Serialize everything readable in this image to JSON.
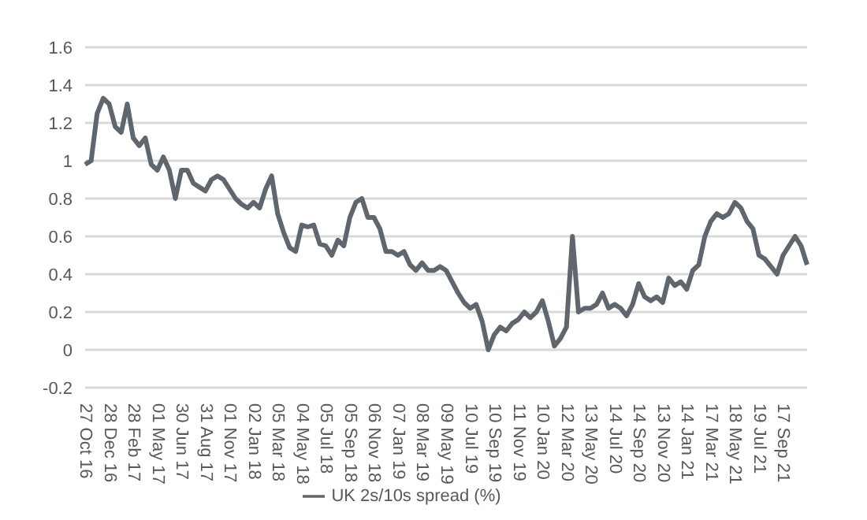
{
  "chart_data": {
    "type": "line",
    "categories": [
      "27 Oct 16",
      null,
      null,
      null,
      "28 Dec 16",
      null,
      null,
      null,
      "28 Feb 17",
      null,
      null,
      null,
      "01 May 17",
      null,
      null,
      null,
      "30 Jun 17",
      null,
      null,
      null,
      "31 Aug 17",
      null,
      null,
      null,
      "01 Nov 17",
      null,
      null,
      null,
      "02 Jan 18",
      null,
      null,
      null,
      "05 Mar 18",
      null,
      null,
      null,
      "04 May 18",
      null,
      null,
      null,
      "05 Jul 18",
      null,
      null,
      null,
      "05 Sep 18",
      null,
      null,
      null,
      "06 Nov 18",
      null,
      null,
      null,
      "07 Jan 19",
      null,
      null,
      null,
      "08 Mar 19",
      null,
      null,
      null,
      "09 May 19",
      null,
      null,
      null,
      "10 Jul 19",
      null,
      null,
      null,
      "10 Sep 19",
      null,
      null,
      null,
      "11 Nov 19",
      null,
      null,
      null,
      "10 Jan 20",
      null,
      null,
      null,
      "12 Mar 20",
      null,
      null,
      null,
      "13 May 20",
      null,
      null,
      null,
      "14 Jul 20",
      null,
      null,
      null,
      "14 Sep 20",
      null,
      null,
      null,
      "13 Nov 20",
      null,
      null,
      null,
      "14 Jan 21",
      null,
      null,
      null,
      "17 Mar 21",
      null,
      null,
      null,
      "18 May 21",
      null,
      null,
      null,
      "19 Jul 21",
      null,
      null,
      null,
      "17 Sep 21",
      null,
      null,
      null,
      null
    ],
    "series": [
      {
        "name": "UK 2s/10s spread (%)",
        "color": "#5f666d",
        "values": [
          0.98,
          1.0,
          1.25,
          1.33,
          1.3,
          1.18,
          1.15,
          1.3,
          1.12,
          1.08,
          1.12,
          0.98,
          0.95,
          1.02,
          0.95,
          0.8,
          0.95,
          0.95,
          0.88,
          0.86,
          0.84,
          0.9,
          0.92,
          0.9,
          0.85,
          0.8,
          0.77,
          0.75,
          0.78,
          0.75,
          0.85,
          0.92,
          0.72,
          0.62,
          0.54,
          0.52,
          0.66,
          0.65,
          0.66,
          0.56,
          0.55,
          0.5,
          0.58,
          0.55,
          0.7,
          0.78,
          0.8,
          0.7,
          0.7,
          0.64,
          0.52,
          0.52,
          0.5,
          0.52,
          0.45,
          0.42,
          0.46,
          0.42,
          0.42,
          0.44,
          0.42,
          0.36,
          0.3,
          0.25,
          0.22,
          0.24,
          0.15,
          0.0,
          0.08,
          0.12,
          0.1,
          0.14,
          0.16,
          0.2,
          0.17,
          0.2,
          0.26,
          0.15,
          0.02,
          0.06,
          0.12,
          0.6,
          0.2,
          0.22,
          0.22,
          0.24,
          0.3,
          0.22,
          0.24,
          0.22,
          0.18,
          0.24,
          0.35,
          0.28,
          0.26,
          0.28,
          0.25,
          0.38,
          0.34,
          0.36,
          0.32,
          0.42,
          0.45,
          0.6,
          0.68,
          0.72,
          0.7,
          0.72,
          0.78,
          0.75,
          0.68,
          0.64,
          0.5,
          0.48,
          0.44,
          0.4,
          0.5,
          0.55,
          0.6,
          0.55,
          0.45
        ]
      }
    ],
    "ylim": [
      -0.2,
      1.6
    ],
    "yticks": [
      -0.2,
      0,
      0.2,
      0.4,
      0.6,
      0.8,
      1,
      1.2,
      1.4,
      1.6
    ],
    "grid": "y",
    "legend": "bottom",
    "marker": "none",
    "line_style": "solid"
  }
}
